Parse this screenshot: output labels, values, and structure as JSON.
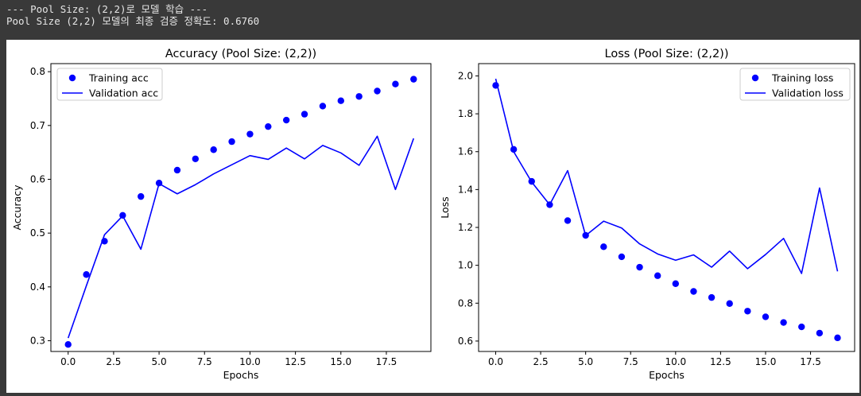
{
  "console": {
    "lines": [
      "--- Pool Size: (2,2)로 모델 학습 ---",
      "Pool Size (2,2) 모델의 최종 검증 정확도: 0.6760"
    ]
  },
  "colors": {
    "series": "#0000ff",
    "axis": "#000000",
    "background": "#ffffff",
    "console_bg": "#393939"
  },
  "chart_data": [
    {
      "type": "line",
      "title": "Accuracy (Pool Size: (2,2))",
      "xlabel": "Epochs",
      "ylabel": "Accuracy",
      "xlim": [
        -0.95,
        19.95
      ],
      "ylim": [
        0.28,
        0.815
      ],
      "xticks": [
        0,
        2.5,
        5,
        7.5,
        10,
        12.5,
        15,
        17.5
      ],
      "xtick_labels": [
        "0.0",
        "2.5",
        "5.0",
        "7.5",
        "10.0",
        "12.5",
        "15.0",
        "17.5"
      ],
      "yticks": [
        0.3,
        0.4,
        0.5,
        0.6,
        0.7,
        0.8
      ],
      "ytick_labels": [
        "0.3",
        "0.4",
        "0.5",
        "0.6",
        "0.7",
        "0.8"
      ],
      "legend_position": "top-left",
      "x": [
        0,
        1,
        2,
        3,
        4,
        5,
        6,
        7,
        8,
        9,
        10,
        11,
        12,
        13,
        14,
        15,
        16,
        17,
        18,
        19
      ],
      "series": [
        {
          "name": "Training acc",
          "style": "dots",
          "values": [
            0.293,
            0.423,
            0.485,
            0.533,
            0.568,
            0.593,
            0.617,
            0.638,
            0.655,
            0.67,
            0.684,
            0.698,
            0.71,
            0.721,
            0.736,
            0.746,
            0.754,
            0.764,
            0.777,
            0.786
          ]
        },
        {
          "name": "Validation acc",
          "style": "line",
          "values": [
            0.305,
            0.402,
            0.497,
            0.532,
            0.47,
            0.592,
            0.573,
            0.59,
            0.61,
            0.627,
            0.644,
            0.637,
            0.658,
            0.638,
            0.663,
            0.649,
            0.626,
            0.68,
            0.581,
            0.676
          ]
        }
      ]
    },
    {
      "type": "line",
      "title": "Loss (Pool Size: (2,2))",
      "xlabel": "Epochs",
      "ylabel": "Loss",
      "xlim": [
        -0.95,
        19.95
      ],
      "ylim": [
        0.545,
        2.065
      ],
      "xticks": [
        0,
        2.5,
        5,
        7.5,
        10,
        12.5,
        15,
        17.5
      ],
      "xtick_labels": [
        "0.0",
        "2.5",
        "5.0",
        "7.5",
        "10.0",
        "12.5",
        "15.0",
        "17.5"
      ],
      "yticks": [
        0.6,
        0.8,
        1.0,
        1.2,
        1.4,
        1.6,
        1.8,
        2.0
      ],
      "ytick_labels": [
        "0.6",
        "0.8",
        "1.0",
        "1.2",
        "1.4",
        "1.6",
        "1.8",
        "2.0"
      ],
      "legend_position": "top-right",
      "x": [
        0,
        1,
        2,
        3,
        4,
        5,
        6,
        7,
        8,
        9,
        10,
        11,
        12,
        13,
        14,
        15,
        16,
        17,
        18,
        19
      ],
      "series": [
        {
          "name": "Training loss",
          "style": "dots",
          "values": [
            1.95,
            1.612,
            1.443,
            1.32,
            1.236,
            1.158,
            1.098,
            1.045,
            0.99,
            0.945,
            0.903,
            0.862,
            0.83,
            0.798,
            0.758,
            0.728,
            0.698,
            0.675,
            0.642,
            0.617
          ]
        },
        {
          "name": "Validation loss",
          "style": "line",
          "values": [
            1.985,
            1.6,
            1.44,
            1.32,
            1.5,
            1.157,
            1.233,
            1.197,
            1.113,
            1.06,
            1.027,
            1.055,
            0.99,
            1.075,
            0.982,
            1.057,
            1.142,
            0.957,
            1.408,
            0.968
          ]
        }
      ]
    }
  ]
}
